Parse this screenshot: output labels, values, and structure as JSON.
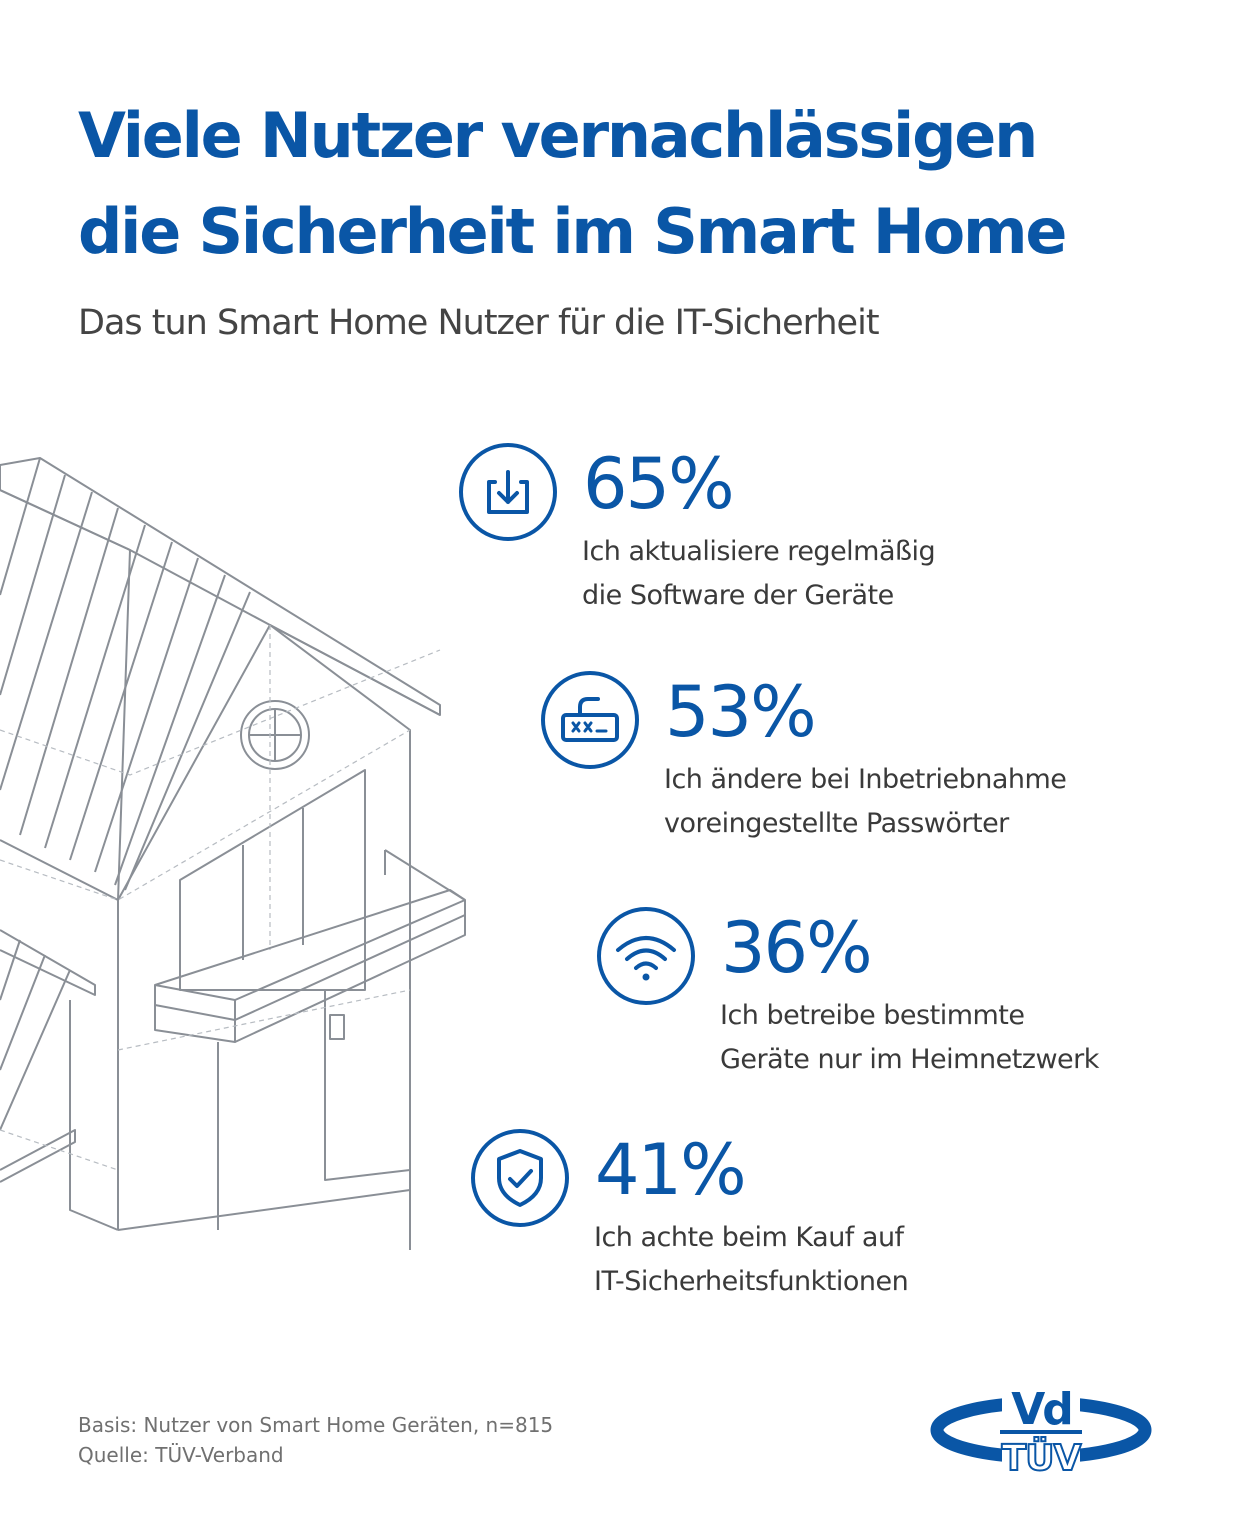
{
  "header": {
    "title_line1": "Viele Nutzer vernachlässigen",
    "title_line2": "die Sicherheit im Smart Home",
    "subtitle": "Das tun Smart Home Nutzer für die IT-Sicherheit"
  },
  "stats": [
    {
      "icon": "download-icon",
      "value": "65%",
      "percent": 65,
      "label_line1": "Ich aktualisiere regelmäßig",
      "label_line2": "die Software der Geräte"
    },
    {
      "icon": "password-icon",
      "value": "53%",
      "percent": 53,
      "label_line1": "Ich ändere bei Inbetriebnahme",
      "label_line2": "voreingestellte Passwörter"
    },
    {
      "icon": "wifi-icon",
      "value": "36%",
      "percent": 36,
      "label_line1": "Ich betreibe bestimmte",
      "label_line2": "Geräte nur im Heimnetzwerk"
    },
    {
      "icon": "shield-check-icon",
      "value": "41%",
      "percent": 41,
      "label_line1": "Ich achte beim Kauf auf",
      "label_line2": "IT-Sicherheitsfunktionen"
    }
  ],
  "footer": {
    "basis": "Basis: Nutzer von Smart Home Geräten, n=815",
    "source": "Quelle: TÜV-Verband"
  },
  "logo": {
    "top_text": "Vd",
    "bottom_text": "TÜV"
  },
  "colors": {
    "accent": "#0a56a6",
    "text": "#3a3a3a",
    "muted": "#707070",
    "house_lines": "#8a8f96"
  }
}
